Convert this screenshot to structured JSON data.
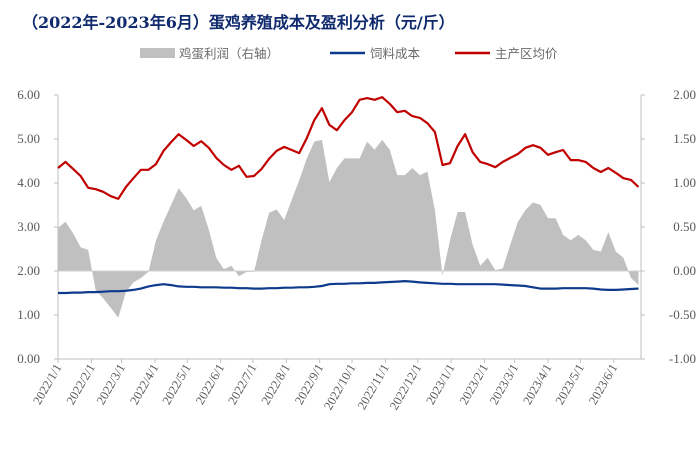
{
  "chart_data": {
    "type": "line",
    "title": "（2022年-2023年6月）蛋鸡养殖成本及盈利分析（元/斤）",
    "legend_position": "top",
    "grid": false,
    "colors": {
      "profit": "#c0c0c0",
      "feed_cost": "#0d3a8c",
      "price": "#c00000",
      "title": "#102a6e",
      "axis": "#bfbfbf"
    },
    "y_left": {
      "range": [
        0,
        6
      ],
      "ticks": [
        "0.00",
        "1.00",
        "2.00",
        "3.00",
        "4.00",
        "5.00",
        "6.00"
      ]
    },
    "y_right": {
      "range": [
        -1,
        2
      ],
      "ticks": [
        "-1.00",
        "-0.50",
        "0.00",
        "0.50",
        "1.00",
        "1.50",
        "2.00"
      ]
    },
    "x_ticks": [
      "2022/1/1",
      "2022/2/1",
      "2022/3/1",
      "2022/4/1",
      "2022/5/1",
      "2022/6/1",
      "2022/7/1",
      "2022/8/1",
      "2022/9/1",
      "2022/10/1",
      "2022/11/1",
      "2022/12/1",
      "2023/1/1",
      "2023/2/1",
      "2023/3/1",
      "2023/4/1",
      "2023/5/1",
      "2023/6/1"
    ],
    "x": [
      "2022-01-01",
      "2022-01-08",
      "2022-01-15",
      "2022-01-22",
      "2022-01-29",
      "2022-02-05",
      "2022-02-12",
      "2022-02-19",
      "2022-02-26",
      "2022-03-05",
      "2022-03-12",
      "2022-03-19",
      "2022-03-26",
      "2022-04-02",
      "2022-04-09",
      "2022-04-16",
      "2022-04-23",
      "2022-04-30",
      "2022-05-07",
      "2022-05-14",
      "2022-05-21",
      "2022-05-28",
      "2022-06-04",
      "2022-06-11",
      "2022-06-18",
      "2022-06-25",
      "2022-07-02",
      "2022-07-09",
      "2022-07-16",
      "2022-07-23",
      "2022-07-30",
      "2022-08-06",
      "2022-08-13",
      "2022-08-20",
      "2022-08-27",
      "2022-09-03",
      "2022-09-10",
      "2022-09-17",
      "2022-09-24",
      "2022-10-01",
      "2022-10-08",
      "2022-10-15",
      "2022-10-22",
      "2022-10-29",
      "2022-11-05",
      "2022-11-12",
      "2022-11-19",
      "2022-11-26",
      "2022-12-03",
      "2022-12-10",
      "2022-12-17",
      "2022-12-24",
      "2022-12-31",
      "2023-01-07",
      "2023-01-14",
      "2023-01-21",
      "2023-01-28",
      "2023-02-04",
      "2023-02-11",
      "2023-02-18",
      "2023-02-25",
      "2023-03-04",
      "2023-03-11",
      "2023-03-18",
      "2023-03-25",
      "2023-04-01",
      "2023-04-08",
      "2023-04-15",
      "2023-04-22",
      "2023-04-29",
      "2023-05-06",
      "2023-05-13",
      "2023-05-20",
      "2023-05-27",
      "2023-06-03",
      "2023-06-10",
      "2023-06-17",
      "2023-06-24"
    ],
    "series": [
      {
        "name": "鸡蛋利润（右轴）",
        "type": "area",
        "axis": "right",
        "values": [
          0.49,
          0.56,
          0.43,
          0.27,
          0.24,
          -0.22,
          -0.31,
          -0.42,
          -0.53,
          -0.24,
          -0.13,
          -0.08,
          -0.01,
          0.35,
          0.56,
          0.75,
          0.94,
          0.83,
          0.69,
          0.74,
          0.47,
          0.15,
          0.02,
          0.06,
          -0.06,
          -0.01,
          -0.01,
          0.35,
          0.66,
          0.7,
          0.58,
          0.81,
          1.03,
          1.28,
          1.47,
          1.49,
          1.01,
          1.17,
          1.28,
          1.28,
          1.28,
          1.47,
          1.38,
          1.49,
          1.38,
          1.09,
          1.09,
          1.17,
          1.09,
          1.13,
          0.69,
          -0.05,
          0.35,
          0.67,
          0.67,
          0.3,
          0.06,
          0.15,
          0.01,
          0.03,
          0.3,
          0.56,
          0.69,
          0.78,
          0.75,
          0.6,
          0.6,
          0.41,
          0.35,
          0.41,
          0.35,
          0.24,
          0.22,
          0.44,
          0.22,
          0.15,
          -0.08,
          -0.16
        ]
      },
      {
        "name": "饲料成本",
        "type": "line",
        "axis": "left",
        "values": [
          1.5,
          1.5,
          1.51,
          1.51,
          1.52,
          1.52,
          1.53,
          1.54,
          1.54,
          1.55,
          1.57,
          1.6,
          1.65,
          1.68,
          1.7,
          1.68,
          1.65,
          1.64,
          1.64,
          1.63,
          1.63,
          1.63,
          1.62,
          1.62,
          1.61,
          1.61,
          1.6,
          1.6,
          1.61,
          1.61,
          1.62,
          1.62,
          1.63,
          1.63,
          1.64,
          1.66,
          1.7,
          1.71,
          1.71,
          1.72,
          1.72,
          1.73,
          1.73,
          1.74,
          1.75,
          1.76,
          1.77,
          1.76,
          1.74,
          1.73,
          1.72,
          1.71,
          1.71,
          1.7,
          1.7,
          1.7,
          1.7,
          1.7,
          1.7,
          1.69,
          1.68,
          1.67,
          1.66,
          1.63,
          1.6,
          1.6,
          1.6,
          1.61,
          1.61,
          1.61,
          1.61,
          1.6,
          1.58,
          1.57,
          1.57,
          1.58,
          1.59,
          1.6
        ]
      },
      {
        "name": "主产区均价",
        "type": "line",
        "axis": "left",
        "values": [
          4.34,
          4.48,
          4.32,
          4.16,
          3.89,
          3.86,
          3.8,
          3.7,
          3.64,
          3.91,
          4.11,
          4.3,
          4.3,
          4.43,
          4.73,
          4.93,
          5.11,
          4.98,
          4.84,
          4.95,
          4.8,
          4.57,
          4.41,
          4.3,
          4.39,
          4.14,
          4.16,
          4.32,
          4.55,
          4.73,
          4.82,
          4.75,
          4.68,
          5.02,
          5.43,
          5.7,
          5.32,
          5.2,
          5.43,
          5.61,
          5.89,
          5.93,
          5.89,
          5.95,
          5.8,
          5.61,
          5.64,
          5.52,
          5.48,
          5.36,
          5.16,
          4.41,
          4.45,
          4.84,
          5.11,
          4.7,
          4.48,
          4.43,
          4.36,
          4.48,
          4.57,
          4.66,
          4.8,
          4.86,
          4.8,
          4.64,
          4.7,
          4.75,
          4.52,
          4.52,
          4.48,
          4.34,
          4.25,
          4.34,
          4.23,
          4.11,
          4.07,
          3.91
        ]
      }
    ]
  }
}
